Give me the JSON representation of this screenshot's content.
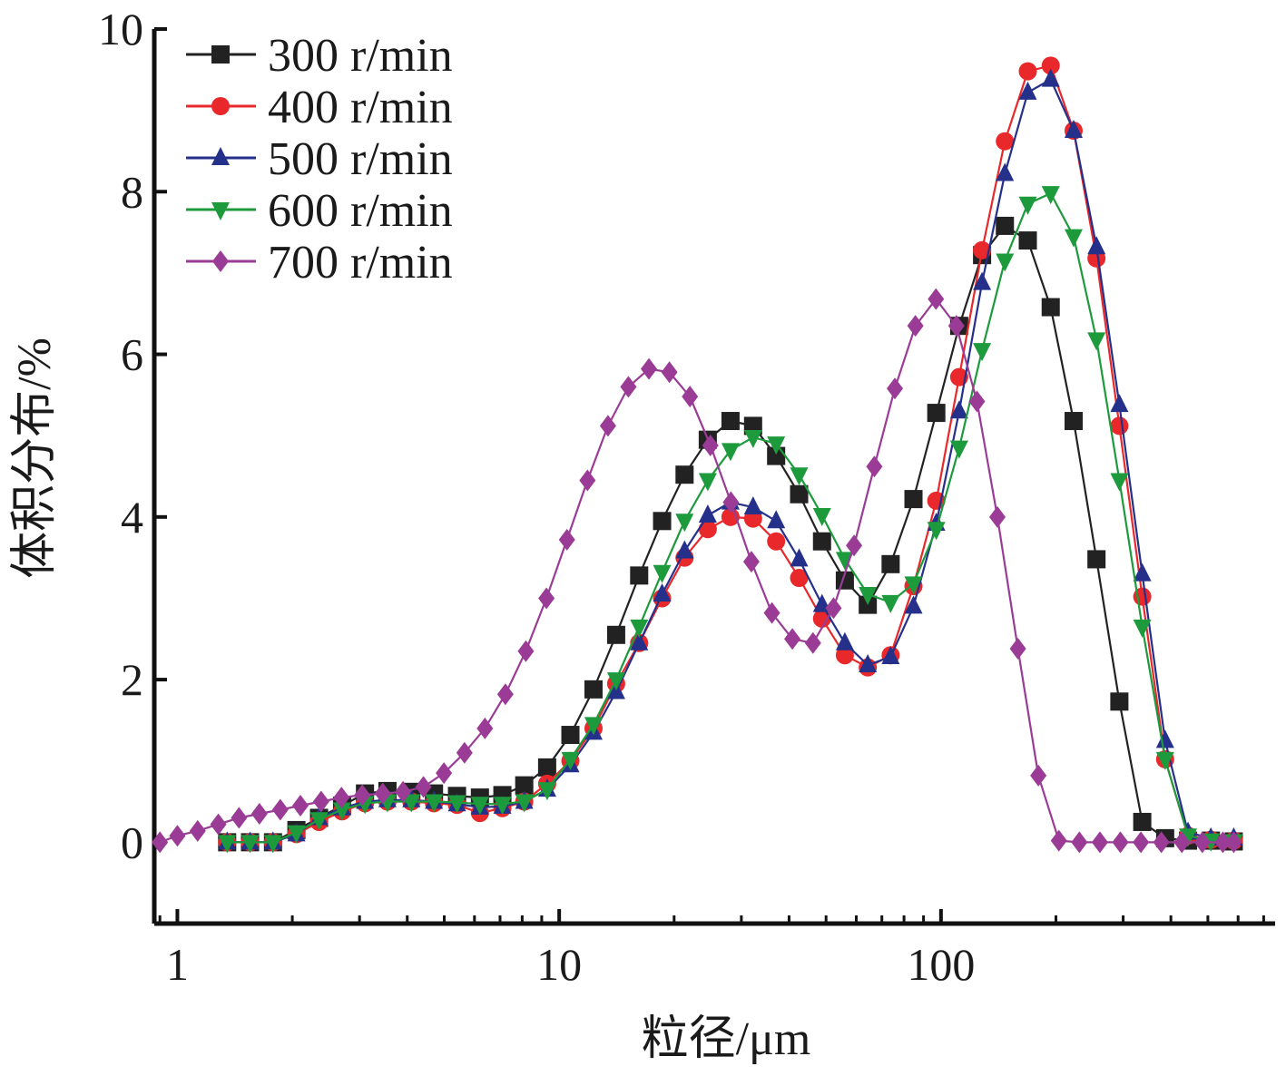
{
  "chart_data": {
    "type": "line",
    "xscale": "log",
    "xlim": [
      0.87,
      750
    ],
    "ylim": [
      -1,
      10
    ],
    "xlabel": "粒径/μm",
    "ylabel": "体积分布/%",
    "x_ticks": [
      1,
      10,
      100
    ],
    "x_tick_labels": [
      "1",
      "10",
      "100"
    ],
    "y_ticks": [
      0,
      2,
      4,
      6,
      8,
      10
    ],
    "y_tick_labels": [
      "0",
      "2",
      "4",
      "6",
      "8",
      "10"
    ],
    "grid": false,
    "legend_position": "top-left",
    "series": [
      {
        "name": "300 r/min",
        "color": "#222222",
        "marker": "square",
        "points": [
          [
            1.35,
            0
          ],
          [
            1.55,
            0
          ],
          [
            1.78,
            0
          ],
          [
            2.05,
            0.15
          ],
          [
            2.35,
            0.3
          ],
          [
            2.7,
            0.45
          ],
          [
            3.1,
            0.6
          ],
          [
            3.55,
            0.63
          ],
          [
            4.1,
            0.62
          ],
          [
            4.7,
            0.6
          ],
          [
            5.4,
            0.57
          ],
          [
            6.2,
            0.55
          ],
          [
            7.1,
            0.58
          ],
          [
            8.1,
            0.7
          ],
          [
            9.3,
            0.92
          ],
          [
            10.7,
            1.32
          ],
          [
            12.3,
            1.88
          ],
          [
            14.1,
            2.55
          ],
          [
            16.2,
            3.28
          ],
          [
            18.6,
            3.95
          ],
          [
            21.3,
            4.52
          ],
          [
            24.5,
            4.95
          ],
          [
            28.1,
            5.18
          ],
          [
            32.2,
            5.12
          ],
          [
            37.0,
            4.75
          ],
          [
            42.5,
            4.28
          ],
          [
            48.8,
            3.7
          ],
          [
            56.0,
            3.22
          ],
          [
            64.3,
            2.92
          ],
          [
            73.8,
            3.42
          ],
          [
            84.7,
            4.22
          ],
          [
            97.2,
            5.28
          ],
          [
            111.6,
            6.35
          ],
          [
            128.1,
            7.22
          ],
          [
            147.0,
            7.58
          ],
          [
            168.8,
            7.4
          ],
          [
            193.8,
            6.58
          ],
          [
            222.5,
            5.18
          ],
          [
            255.4,
            3.48
          ],
          [
            293.2,
            1.73
          ],
          [
            336.6,
            0.25
          ],
          [
            386.4,
            0.05
          ],
          [
            443.6,
            0.02
          ],
          [
            509.2,
            0.02
          ],
          [
            584.5,
            0.01
          ]
        ]
      },
      {
        "name": "400 r/min",
        "color": "#e8282a",
        "marker": "circle",
        "points": [
          [
            1.35,
            0
          ],
          [
            1.55,
            0
          ],
          [
            1.78,
            0
          ],
          [
            2.05,
            0.1
          ],
          [
            2.35,
            0.25
          ],
          [
            2.7,
            0.38
          ],
          [
            3.1,
            0.48
          ],
          [
            3.55,
            0.5
          ],
          [
            4.1,
            0.5
          ],
          [
            4.7,
            0.48
          ],
          [
            5.4,
            0.46
          ],
          [
            6.2,
            0.36
          ],
          [
            7.1,
            0.42
          ],
          [
            8.1,
            0.5
          ],
          [
            9.3,
            0.72
          ],
          [
            10.7,
            1.0
          ],
          [
            12.3,
            1.4
          ],
          [
            14.1,
            1.95
          ],
          [
            16.2,
            2.45
          ],
          [
            18.6,
            3.0
          ],
          [
            21.3,
            3.5
          ],
          [
            24.5,
            3.85
          ],
          [
            28.1,
            4.0
          ],
          [
            32.2,
            3.98
          ],
          [
            37.0,
            3.7
          ],
          [
            42.5,
            3.25
          ],
          [
            48.8,
            2.75
          ],
          [
            56.0,
            2.3
          ],
          [
            64.3,
            2.15
          ],
          [
            73.8,
            2.3
          ],
          [
            84.7,
            3.15
          ],
          [
            97.2,
            4.2
          ],
          [
            111.6,
            5.72
          ],
          [
            128.1,
            7.28
          ],
          [
            147.0,
            8.62
          ],
          [
            168.8,
            9.48
          ],
          [
            193.8,
            9.55
          ],
          [
            222.5,
            8.75
          ],
          [
            255.4,
            7.18
          ],
          [
            293.2,
            5.12
          ],
          [
            336.6,
            3.02
          ],
          [
            386.4,
            1.02
          ],
          [
            443.6,
            0.08
          ],
          [
            509.2,
            0.03
          ],
          [
            584.5,
            0.02
          ]
        ]
      },
      {
        "name": "500 r/min",
        "color": "#24308a",
        "marker": "triangle-up",
        "points": [
          [
            1.35,
            0
          ],
          [
            1.55,
            0
          ],
          [
            1.78,
            0
          ],
          [
            2.05,
            0.1
          ],
          [
            2.35,
            0.3
          ],
          [
            2.7,
            0.42
          ],
          [
            3.1,
            0.5
          ],
          [
            3.55,
            0.52
          ],
          [
            4.1,
            0.52
          ],
          [
            4.7,
            0.5
          ],
          [
            5.4,
            0.47
          ],
          [
            6.2,
            0.43
          ],
          [
            7.1,
            0.44
          ],
          [
            8.1,
            0.5
          ],
          [
            9.3,
            0.65
          ],
          [
            10.7,
            0.95
          ],
          [
            12.3,
            1.35
          ],
          [
            14.1,
            1.85
          ],
          [
            16.2,
            2.45
          ],
          [
            18.6,
            3.05
          ],
          [
            21.3,
            3.58
          ],
          [
            24.5,
            4.02
          ],
          [
            28.1,
            4.18
          ],
          [
            32.2,
            4.12
          ],
          [
            37.0,
            3.95
          ],
          [
            42.5,
            3.48
          ],
          [
            48.8,
            2.92
          ],
          [
            56.0,
            2.45
          ],
          [
            64.3,
            2.18
          ],
          [
            73.8,
            2.28
          ],
          [
            84.7,
            2.9
          ],
          [
            97.2,
            3.92
          ],
          [
            111.6,
            5.3
          ],
          [
            128.1,
            6.88
          ],
          [
            147.0,
            8.22
          ],
          [
            168.8,
            9.22
          ],
          [
            193.8,
            9.38
          ],
          [
            222.5,
            8.75
          ],
          [
            255.4,
            7.32
          ],
          [
            293.2,
            5.38
          ],
          [
            336.6,
            3.3
          ],
          [
            386.4,
            1.25
          ],
          [
            443.6,
            0.12
          ],
          [
            509.2,
            0.05
          ],
          [
            584.5,
            0.05
          ]
        ]
      },
      {
        "name": "600 r/min",
        "color": "#1d9a3c",
        "marker": "triangle-down",
        "points": [
          [
            1.35,
            0
          ],
          [
            1.55,
            0
          ],
          [
            1.78,
            0
          ],
          [
            2.05,
            0.12
          ],
          [
            2.35,
            0.28
          ],
          [
            2.7,
            0.4
          ],
          [
            3.1,
            0.48
          ],
          [
            3.55,
            0.5
          ],
          [
            4.1,
            0.5
          ],
          [
            4.7,
            0.5
          ],
          [
            5.4,
            0.49
          ],
          [
            6.2,
            0.47
          ],
          [
            7.1,
            0.47
          ],
          [
            8.1,
            0.5
          ],
          [
            9.3,
            0.65
          ],
          [
            10.7,
            1.02
          ],
          [
            12.3,
            1.45
          ],
          [
            14.1,
            2.0
          ],
          [
            16.2,
            2.65
          ],
          [
            18.6,
            3.32
          ],
          [
            21.3,
            3.95
          ],
          [
            24.5,
            4.45
          ],
          [
            28.1,
            4.82
          ],
          [
            32.2,
            4.98
          ],
          [
            37.0,
            4.9
          ],
          [
            42.5,
            4.52
          ],
          [
            48.8,
            4.02
          ],
          [
            56.0,
            3.48
          ],
          [
            64.3,
            3.05
          ],
          [
            73.8,
            2.95
          ],
          [
            84.7,
            3.18
          ],
          [
            97.2,
            3.85
          ],
          [
            111.6,
            4.85
          ],
          [
            128.1,
            6.05
          ],
          [
            147.0,
            7.15
          ],
          [
            168.8,
            7.85
          ],
          [
            193.8,
            7.98
          ],
          [
            222.5,
            7.45
          ],
          [
            255.4,
            6.18
          ],
          [
            293.2,
            4.45
          ],
          [
            336.6,
            2.65
          ],
          [
            386.4,
            1.02
          ],
          [
            443.6,
            0.08
          ],
          [
            509.2,
            0.02
          ],
          [
            584.5,
            0.01
          ]
        ]
      },
      {
        "name": "700 r/min",
        "color": "#9a3c96",
        "marker": "diamond",
        "points": [
          [
            0.9,
            0
          ],
          [
            1.0,
            0.08
          ],
          [
            1.13,
            0.14
          ],
          [
            1.28,
            0.22
          ],
          [
            1.45,
            0.3
          ],
          [
            1.64,
            0.35
          ],
          [
            1.86,
            0.4
          ],
          [
            2.1,
            0.45
          ],
          [
            2.38,
            0.5
          ],
          [
            2.69,
            0.55
          ],
          [
            3.05,
            0.58
          ],
          [
            3.45,
            0.6
          ],
          [
            3.9,
            0.62
          ],
          [
            4.41,
            0.68
          ],
          [
            4.99,
            0.85
          ],
          [
            5.65,
            1.1
          ],
          [
            6.39,
            1.4
          ],
          [
            7.23,
            1.82
          ],
          [
            8.18,
            2.35
          ],
          [
            9.26,
            3.0
          ],
          [
            10.48,
            3.72
          ],
          [
            11.86,
            4.45
          ],
          [
            13.42,
            5.12
          ],
          [
            15.18,
            5.6
          ],
          [
            17.18,
            5.82
          ],
          [
            19.44,
            5.78
          ],
          [
            22.0,
            5.48
          ],
          [
            24.89,
            4.88
          ],
          [
            28.17,
            4.18
          ],
          [
            31.87,
            3.45
          ],
          [
            36.07,
            2.82
          ],
          [
            40.8,
            2.5
          ],
          [
            46.2,
            2.45
          ],
          [
            52.3,
            2.88
          ],
          [
            59.2,
            3.65
          ],
          [
            66.9,
            4.62
          ],
          [
            75.7,
            5.58
          ],
          [
            85.7,
            6.35
          ],
          [
            97.0,
            6.68
          ],
          [
            109.7,
            6.35
          ],
          [
            124.2,
            5.42
          ],
          [
            140.5,
            4.0
          ],
          [
            159.0,
            2.38
          ],
          [
            179.9,
            0.82
          ],
          [
            203.6,
            0.02
          ],
          [
            230.4,
            0.0
          ],
          [
            260.7,
            0.0
          ],
          [
            295.0,
            0.0
          ],
          [
            333.8,
            0.0
          ],
          [
            377.7,
            0.0
          ],
          [
            427.4,
            0.0
          ],
          [
            483.6,
            0.0
          ],
          [
            547.2,
            0.0
          ],
          [
            584.5,
            0.0
          ]
        ]
      }
    ]
  }
}
